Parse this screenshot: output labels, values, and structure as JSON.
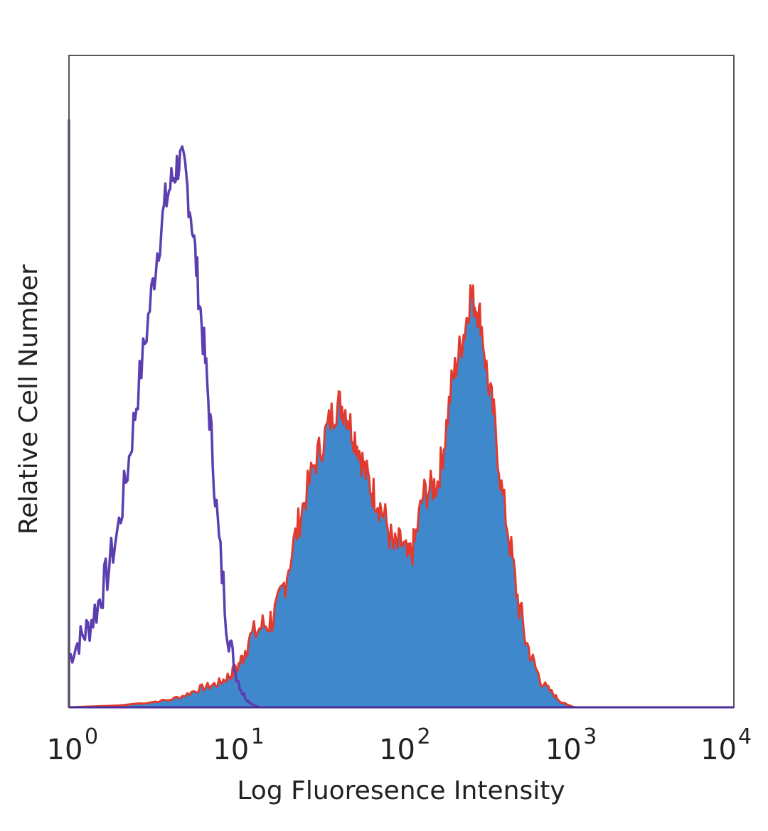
{
  "chart_data": {
    "type": "area",
    "xlabel": "Log Fluoresence Intensity",
    "ylabel": "Relative Cell Number",
    "x_scale": "log",
    "xlim": [
      1,
      10000
    ],
    "ylim": [
      0,
      100
    ],
    "x_ticks": [
      {
        "base": "10",
        "exp": "0"
      },
      {
        "base": "10",
        "exp": "1"
      },
      {
        "base": "10",
        "exp": "2"
      },
      {
        "base": "10",
        "exp": "3"
      },
      {
        "base": "10",
        "exp": "4"
      }
    ],
    "grid": false,
    "series": [
      {
        "color": "#5b3fb0",
        "style": "outline",
        "x": [
          1,
          1.15,
          1.3,
          1.5,
          1.7,
          2.0,
          2.3,
          2.6,
          3.0,
          3.4,
          3.8,
          4.2,
          4.6,
          5.0,
          5.5,
          6.0,
          6.6,
          7.2,
          8.0,
          9.0,
          10,
          11,
          12,
          13,
          14
        ],
        "y": [
          8,
          11,
          13,
          17,
          22,
          30,
          41,
          52,
          64,
          75,
          83,
          87,
          90,
          88,
          80,
          69,
          57,
          44,
          27,
          13,
          6,
          2.5,
          1,
          0.3,
          0
        ]
      },
      {
        "color": "#3f88cc",
        "style": "filled",
        "outline_color": "#e23a2e",
        "x": [
          1,
          2,
          3,
          4,
          5,
          6,
          7,
          8,
          9,
          10,
          11,
          12,
          14,
          16,
          18,
          20,
          23,
          26,
          30,
          34,
          38,
          42,
          46,
          50,
          55,
          60,
          66,
          72,
          80,
          90,
          100,
          110,
          120,
          135,
          150,
          165,
          180,
          200,
          220,
          240,
          260,
          280,
          300,
          330,
          360,
          400,
          450,
          500,
          560,
          630,
          700,
          800,
          900,
          1000,
          1100
        ],
        "y": [
          0,
          0.3,
          0.8,
          1.2,
          2,
          3,
          3.5,
          4,
          5,
          6,
          8,
          11,
          13,
          14,
          16,
          21,
          28,
          34,
          40,
          44,
          48,
          50,
          49,
          46,
          43,
          39,
          36,
          34,
          31,
          26,
          27,
          24,
          27,
          35,
          36,
          37,
          43,
          53,
          58,
          62,
          68,
          66,
          64,
          54,
          48,
          36,
          27,
          18,
          11,
          7,
          4,
          2.5,
          1,
          0.4,
          0
        ]
      }
    ]
  }
}
